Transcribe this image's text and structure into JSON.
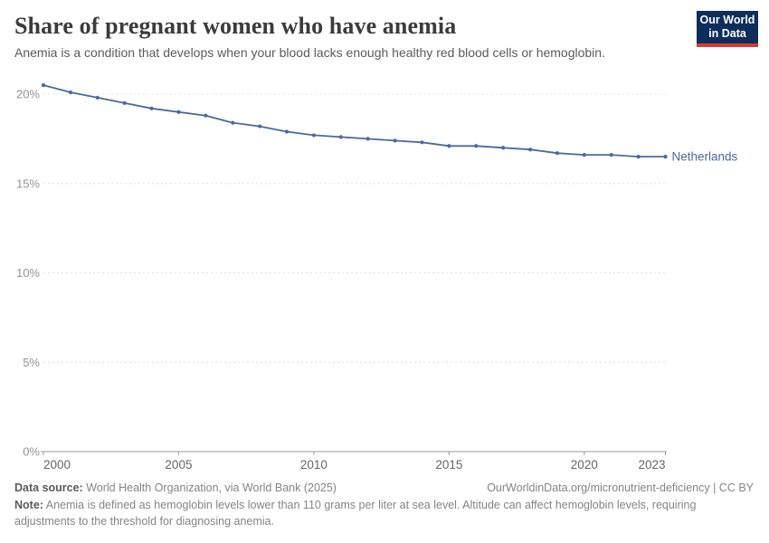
{
  "header": {
    "title": "Share of pregnant women who have anemia",
    "subtitle": "Anemia is a condition that develops when your blood lacks enough healthy red blood cells or hemoglobin.",
    "logo": {
      "line1": "Our World",
      "line2": "in Data"
    }
  },
  "chart_data": {
    "type": "line",
    "title": "Share of pregnant women who have anemia",
    "x": [
      2000,
      2001,
      2002,
      2003,
      2004,
      2005,
      2006,
      2007,
      2008,
      2009,
      2010,
      2011,
      2012,
      2013,
      2014,
      2015,
      2016,
      2017,
      2018,
      2019,
      2020,
      2021,
      2022,
      2023
    ],
    "series": [
      {
        "name": "Netherlands",
        "color": "#4c6a9c",
        "values": [
          20.5,
          20.1,
          19.8,
          19.5,
          19.2,
          19.0,
          18.8,
          18.4,
          18.2,
          17.9,
          17.7,
          17.6,
          17.5,
          17.4,
          17.3,
          17.1,
          17.1,
          17.0,
          16.9,
          16.7,
          16.6,
          16.6,
          16.5,
          16.5
        ]
      }
    ],
    "unit": "%",
    "ylim": [
      0,
      21.5
    ],
    "yticks": [
      0,
      5,
      10,
      15,
      20
    ],
    "ytick_labels": [
      "0%",
      "5%",
      "10%",
      "15%",
      "20%"
    ],
    "xticks": [
      2000,
      2005,
      2010,
      2015,
      2020,
      2023
    ],
    "xtick_labels": [
      "2000",
      "2005",
      "2010",
      "2015",
      "2020",
      "2023"
    ],
    "grid": "horizontal-dashed",
    "legend": "line-end-label",
    "markers": true
  },
  "footer": {
    "datasource_label": "Data source:",
    "datasource_text": " World Health Organization, via World Bank (2025)",
    "link_text": "OurWorldinData.org/micronutrient-deficiency | CC BY",
    "note_label": "Note:",
    "note_text": " Anemia is defined as hemoglobin levels lower than 110 grams per liter at sea level. Altitude can affect hemoglobin levels, requiring adjustments to the threshold for diagnosing anemia."
  },
  "colors": {
    "accent_line": "#4c6a9c",
    "logo_navy": "#0d2e5c",
    "logo_red": "#d93b2b",
    "grid": "#e0e0e0",
    "axis": "#9a9a9a"
  }
}
